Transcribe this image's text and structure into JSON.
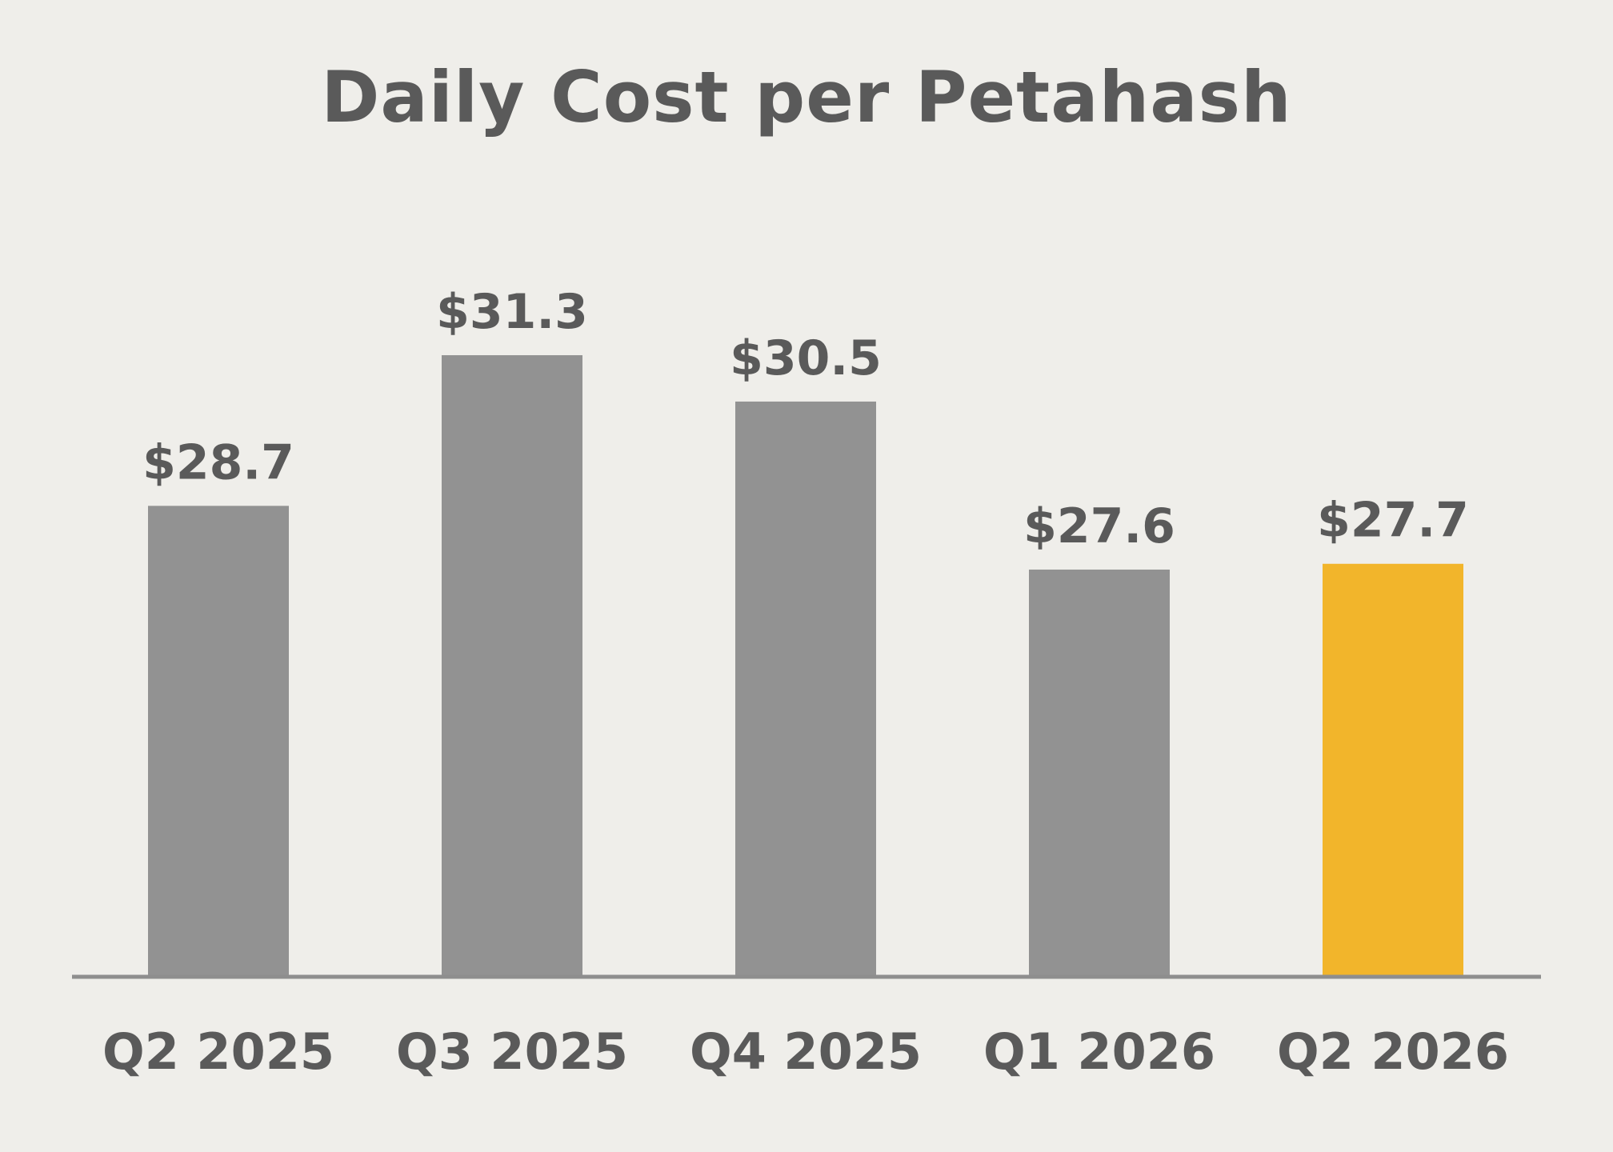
{
  "chart_data": {
    "type": "bar",
    "title": "Daily Cost per Petahash",
    "categories": [
      "Q2 2025",
      "Q3 2025",
      "Q4 2025",
      "Q1 2026",
      "Q2 2026"
    ],
    "values": [
      28.7,
      31.3,
      30.5,
      27.6,
      27.7
    ],
    "value_labels": [
      "$28.7",
      "$31.3",
      "$30.5",
      "$27.6",
      "$27.7"
    ],
    "xlabel": "",
    "ylabel": "",
    "ylim": [
      0,
      31.3
    ],
    "grid": false,
    "legend": "none",
    "colors": {
      "bar_default": "#929292",
      "bar_highlight": "#f2b52b",
      "axis_line": "#8e8e8e",
      "text": "#5a5a5a",
      "background": "#efeeea"
    },
    "highlight_index": 4
  }
}
